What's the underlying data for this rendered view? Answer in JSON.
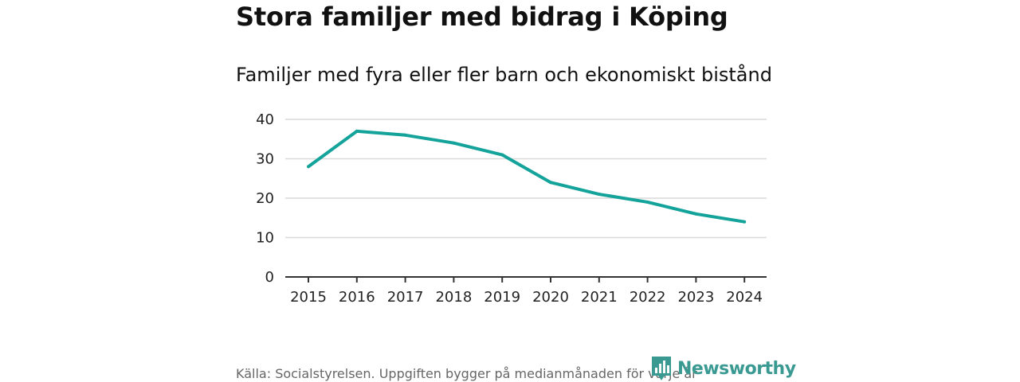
{
  "header": {
    "title": "Stora familjer med bidrag i Köping",
    "subtitle": "Familjer med fyra eller fler barn och ekonomiskt bistånd"
  },
  "footer": {
    "source": "Källa: Socialstyrelsen. Uppgiften bygger på medianmånaden för varje år",
    "brand": "Newsworthy"
  },
  "colors": {
    "line": "#14a39a",
    "grid": "#d9d9d9",
    "axis": "#333333",
    "brand": "#3a9a92"
  },
  "chart_data": {
    "type": "line",
    "title": "Stora familjer med bidrag i Köping",
    "subtitle": "Familjer med fyra eller fler barn och ekonomiskt bistånd",
    "xlabel": "",
    "ylabel": "",
    "ylim": [
      0,
      40
    ],
    "yticks": [
      0,
      10,
      20,
      30,
      40
    ],
    "grid": true,
    "legend": "none",
    "x": [
      "2015",
      "2016",
      "2017",
      "2018",
      "2019",
      "2020",
      "2021",
      "2022",
      "2023",
      "2024"
    ],
    "series": [
      {
        "name": "Familjer med fyra eller fler barn och ekonomiskt bistånd",
        "values": [
          28,
          37,
          36,
          34,
          31,
          24,
          21,
          19,
          16,
          14
        ]
      }
    ]
  }
}
